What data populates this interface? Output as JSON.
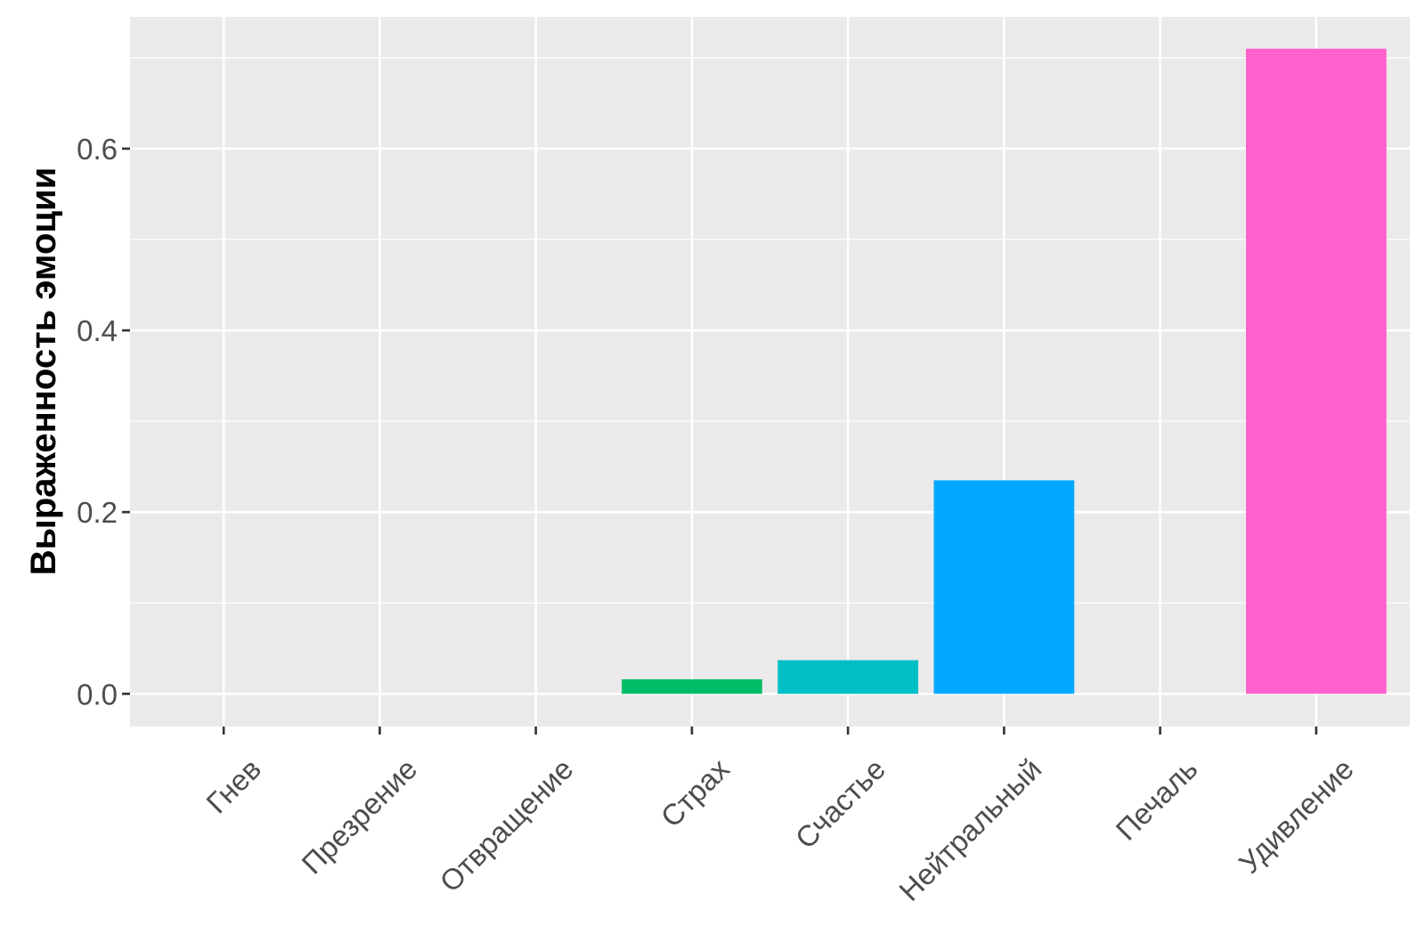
{
  "chart_data": {
    "type": "bar",
    "title": "",
    "xlabel": "",
    "ylabel": "Выраженность эмоции",
    "categories": [
      "Гнев",
      "Презрение",
      "Отвращение",
      "Страх",
      "Счастье",
      "Нейтральный",
      "Печаль",
      "Удивление"
    ],
    "values": [
      0,
      0,
      0,
      0.016,
      0.037,
      0.235,
      0,
      0.71
    ],
    "colors": [
      "#F8766D",
      "#CD9600",
      "#7CAE00",
      "#00BE67",
      "#00BFC4",
      "#00A9FF",
      "#C77CFF",
      "#FF61CC"
    ],
    "ylim": [
      -0.036,
      0.745
    ],
    "yticks": [
      0.0,
      0.2,
      0.4,
      0.6
    ],
    "ytick_labels": [
      "0.0",
      "0.2",
      "0.4",
      "0.6"
    ],
    "yminor": [
      0.1,
      0.3,
      0.5,
      0.7
    ],
    "grid": true,
    "legend": "none",
    "panel_background": "#EBE9E9"
  }
}
